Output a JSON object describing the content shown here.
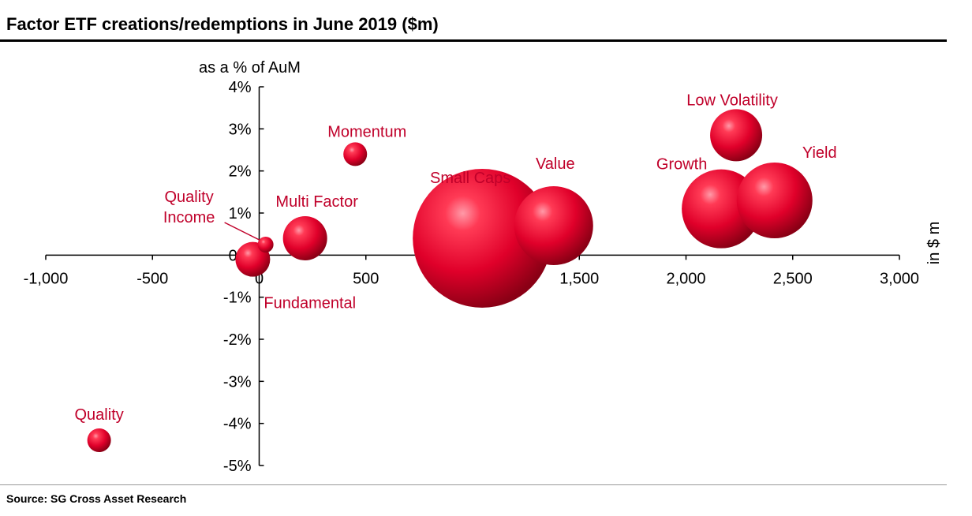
{
  "header": {
    "title": "Factor ETF creations/redemptions in June 2019 ($m)"
  },
  "footer": {
    "source": "Source: SG Cross Asset Research"
  },
  "colors": {
    "bubble": "#e0002a",
    "bubble_dark": "#8a0015",
    "label": "#c0002a",
    "axis": "#000000"
  },
  "chart_data": {
    "type": "bubble",
    "title": "Factor ETF creations/redemptions in June 2019 ($m)",
    "xlabel": "in $ m",
    "ylabel": "as a % of AuM",
    "xlim": [
      -1000,
      3000
    ],
    "ylim": [
      -5,
      4
    ],
    "x_ticks": [
      -1000,
      -500,
      0,
      500,
      1000,
      1500,
      2000,
      2500,
      3000
    ],
    "x_tick_labels": [
      "-1,000",
      "-500",
      "0",
      "500",
      "1,000",
      "1,500",
      "2,000",
      "2,500",
      "3,000"
    ],
    "y_ticks": [
      4,
      3,
      2,
      1,
      0,
      -1,
      -2,
      -3,
      -4,
      -5
    ],
    "y_tick_labels": [
      "4%",
      "3%",
      "2%",
      "1%",
      "0%",
      "-1%",
      "-2%",
      "-3%",
      "-4%",
      "-5%"
    ],
    "points": [
      {
        "name": "Quality",
        "label": "Quality",
        "x": -750,
        "y": -4.4,
        "size": 15
      },
      {
        "name": "Fundamental",
        "label": "Fundamental",
        "x": -30,
        "y": -0.1,
        "size": 22
      },
      {
        "name": "Quality Income",
        "label_lines": [
          "Quality",
          "Income"
        ],
        "x": 30,
        "y": 0.25,
        "size": 10
      },
      {
        "name": "Multi Factor",
        "label": "Multi Factor",
        "x": 215,
        "y": 0.4,
        "size": 28
      },
      {
        "name": "Momentum",
        "label": "Momentum",
        "x": 450,
        "y": 2.4,
        "size": 15
      },
      {
        "name": "Small Caps",
        "label": "Small Caps",
        "x": 1045,
        "y": 0.4,
        "size": 88
      },
      {
        "name": "Value",
        "label": "Value",
        "x": 1380,
        "y": 0.7,
        "size": 50
      },
      {
        "name": "Growth",
        "label": "Growth",
        "x": 2165,
        "y": 1.1,
        "size": 50
      },
      {
        "name": "Yield",
        "label": "Yield",
        "x": 2415,
        "y": 1.3,
        "size": 48
      },
      {
        "name": "Low Volatility",
        "label": "Low Volatility",
        "x": 2235,
        "y": 2.85,
        "size": 33
      }
    ]
  }
}
